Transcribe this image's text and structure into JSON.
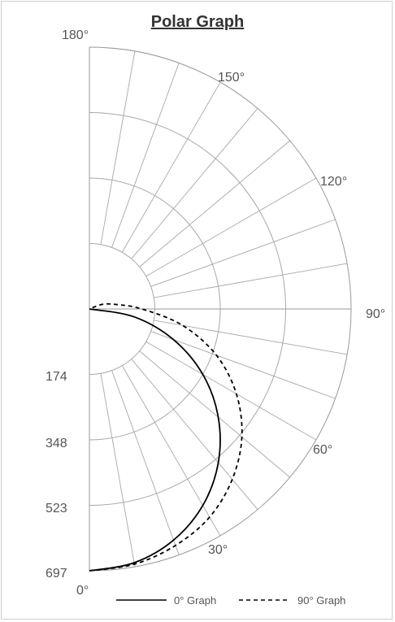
{
  "chart_data": {
    "type": "polar-line",
    "title": "Polar Graph",
    "radial_axis": {
      "min": 0,
      "max": 697,
      "ticks": [
        "174",
        "348",
        "523",
        "697"
      ]
    },
    "angular_axis": {
      "range": [
        0,
        180
      ],
      "unit": "°",
      "ticks": [
        {
          "angle": 0,
          "label": "0°"
        },
        {
          "angle": 30,
          "label": "30°"
        },
        {
          "angle": 60,
          "label": "60°"
        },
        {
          "angle": 90,
          "label": "90°"
        },
        {
          "angle": 120,
          "label": "120°"
        },
        {
          "angle": 150,
          "label": "150°"
        },
        {
          "angle": 180,
          "label": "180°"
        }
      ]
    },
    "grid": true,
    "legend_position": "bottom",
    "series": [
      {
        "name": "0° Graph",
        "style": "solid",
        "color": "#000000",
        "angles": [
          0,
          10,
          20,
          30,
          40,
          50,
          60,
          70,
          80,
          90
        ],
        "values": [
          697,
          686,
          655,
          604,
          534,
          448,
          349,
          238,
          121,
          0
        ]
      },
      {
        "name": "90° Graph",
        "style": "dashed",
        "color": "#000000",
        "angles": [
          0,
          10,
          20,
          30,
          40,
          50,
          60,
          70,
          80,
          90,
          100,
          110,
          120
        ],
        "values": [
          697,
          690,
          670,
          640,
          592,
          530,
          452,
          360,
          252,
          140,
          70,
          35,
          0
        ]
      }
    ]
  }
}
